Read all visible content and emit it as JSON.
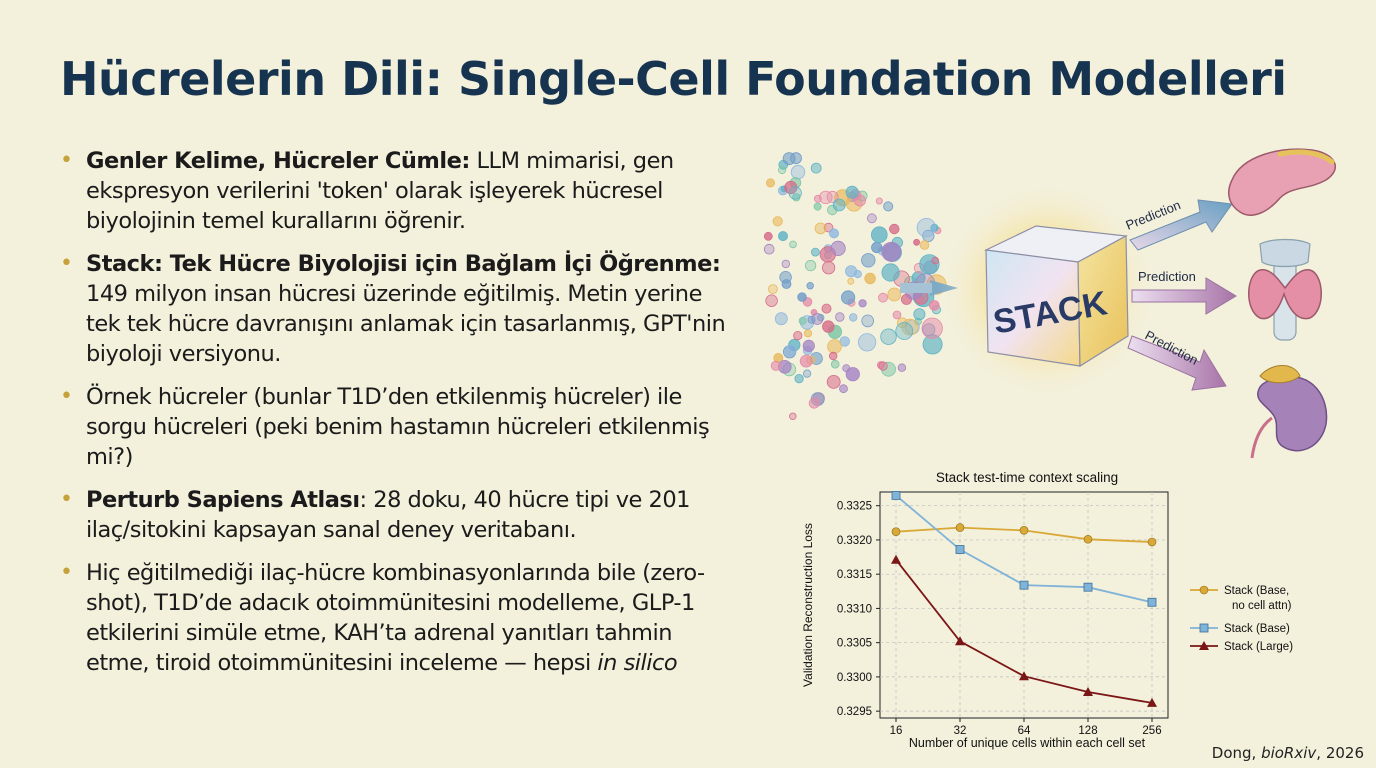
{
  "title": "Hücrelerin Dili: Single-Cell Foundation Modelleri",
  "bullets": [
    {
      "bold": "Genler Kelime, Hücreler Cümle:",
      "text": " LLM mimarisi, gen ekspresyon verilerini 'token' olarak işleyerek hücresel biyolojinin temel kurallarını öğrenir."
    },
    {
      "bold": "Stack: Tek Hücre Biyolojisi için Bağlam İçi Öğrenme:",
      "text": " 149 milyon insan hücresi üzerinde eğitilmiş. Metin yerine tek tek hücre davranışını anlamak için tasarlanmış, GPT'nin biyoloji versiyonu."
    },
    {
      "bold": "",
      "text": "Örnek hücreler (bunlar T1D’den etkilenmiş hücreler) ile sorgu hücreleri (peki benim hastamın hücreleri etkilenmiş mi?)"
    },
    {
      "bold": "Perturb Sapiens Atlası",
      "text": ": 28 doku, 40 hücre tipi ve 201 ilaç/sitokini kapsayan sanal deney veritabanı."
    },
    {
      "bold": "",
      "text": "Hiç eğitilmediği ilaç-hücre kombinasyonlarında bile (zero-shot), T1D’de adacık otoimmünitesini modelleme, GLP-1 etkilerini simüle etme, KAH’ta adrenal yanıtları tahmin etme, tiroid otoimmünitesini inceleme — hepsi ",
      "italic": "in silico"
    }
  ],
  "illustration": {
    "cube_label": "STACK",
    "arrow_labels": [
      "Prediction",
      "Prediction",
      "Prediction"
    ]
  },
  "chart_data": {
    "type": "line",
    "title": "Stack test-time context scaling",
    "xlabel": "Number of unique cells within each cell set",
    "ylabel": "Validation Reconstruction Loss",
    "x": [
      16,
      32,
      64,
      128,
      256
    ],
    "x_tick_labels": [
      "16",
      "32",
      "64",
      "128",
      "256"
    ],
    "x_scale": "log2",
    "ylim": [
      0.3294,
      0.3327
    ],
    "y_ticks": [
      0.3295,
      0.33,
      0.3305,
      0.331,
      0.3315,
      0.332,
      0.3325
    ],
    "y_tick_labels": [
      "0.3295",
      "0.3300",
      "0.3305",
      "0.3310",
      "0.3315",
      "0.3320",
      "0.3325"
    ],
    "grid": true,
    "legend_position": "right, outside",
    "series": [
      {
        "name": "Stack (Base, no cell attn)",
        "legend_lines": [
          "Stack (Base,",
          "no cell attn)"
        ],
        "values": [
          0.33212,
          0.33218,
          0.33214,
          0.33201,
          0.33197
        ],
        "color": "#d9a836",
        "marker": "circle"
      },
      {
        "name": "Stack (Base)",
        "legend_lines": [
          "Stack (Base)"
        ],
        "values": [
          0.33265,
          0.33186,
          0.33134,
          0.33131,
          0.33109
        ],
        "color": "#7fb3d8",
        "marker": "square"
      },
      {
        "name": "Stack (Large)",
        "legend_lines": [
          "Stack (Large)"
        ],
        "values": [
          0.33171,
          0.33052,
          0.33001,
          0.32978,
          0.32962
        ],
        "color": "#7a1616",
        "marker": "triangle"
      }
    ]
  },
  "citation": {
    "author": "Dong, ",
    "journal": "bioRxiv",
    "year": ", 2026"
  }
}
